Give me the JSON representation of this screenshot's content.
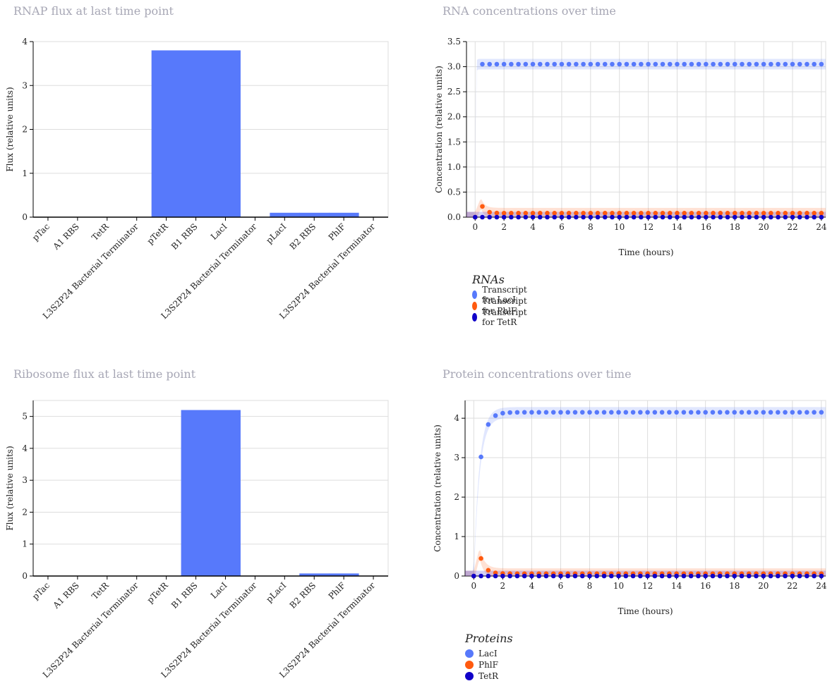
{
  "colors": {
    "lacI": "#5779fb",
    "phlF": "#ff5a0f",
    "tetR": "#1000c8",
    "grid": "#dddddd",
    "axis": "#000000",
    "title": "#a7a7b5"
  },
  "chart_data": [
    {
      "id": "rnap",
      "type": "bar",
      "title": "RNAP flux at last time point",
      "xlabel": "",
      "ylabel": "Flux (relative units)",
      "categories": [
        "pTac",
        "A1 RBS",
        "TetR",
        "L3S2P24 Bacterial Terminator",
        "pTetR",
        "B1 RBS",
        "LacI",
        "L3S2P24 Bacterial Terminator",
        "pLacI",
        "B2 RBS",
        "PhlF",
        "L3S2P24 Bacterial Terminator"
      ],
      "values": [
        0,
        0,
        0,
        0,
        3.8,
        3.8,
        3.8,
        0,
        0.1,
        0.1,
        0.1,
        0
      ],
      "ylim": [
        0,
        4
      ],
      "yticks": [
        0,
        1,
        2,
        3,
        4
      ],
      "grid": true
    },
    {
      "id": "rna",
      "type": "scatter",
      "title": "RNA concentrations over time",
      "xlabel": "Time (hours)",
      "ylabel": "Concentration (relative units)",
      "xlim": [
        -0.6,
        24.3
      ],
      "ylim": [
        0,
        3.5
      ],
      "xticks": [
        0,
        2,
        4,
        6,
        8,
        10,
        12,
        14,
        16,
        18,
        20,
        22,
        24
      ],
      "yticks": [
        "0.0",
        "0.5",
        "1.0",
        "1.5",
        "2.0",
        "2.5",
        "3.0",
        "3.5"
      ],
      "grid": true,
      "legend_title": "RNAs",
      "series": [
        {
          "name": "Transcript for LacI",
          "color": "#5779fb",
          "start": 0,
          "steady": 3.05,
          "rate": 40
        },
        {
          "name": "Transcript for PhlF",
          "color": "#ff5a0f",
          "start": 0,
          "peak": 0.28,
          "steady": 0.08,
          "decay": 4
        },
        {
          "name": "Transcript for TetR",
          "color": "#1000c8",
          "start": 0,
          "steady": 0.0
        }
      ]
    },
    {
      "id": "ribo",
      "type": "bar",
      "title": "Ribosome flux at last time point",
      "xlabel": "",
      "ylabel": "Flux (relative units)",
      "categories": [
        "pTac",
        "A1 RBS",
        "TetR",
        "L3S2P24 Bacterial Terminator",
        "pTetR",
        "B1 RBS",
        "LacI",
        "L3S2P24 Bacterial Terminator",
        "pLacI",
        "B2 RBS",
        "PhlF",
        "L3S2P24 Bacterial Terminator"
      ],
      "values": [
        0,
        0,
        0,
        0,
        0,
        5.2,
        5.2,
        0,
        0,
        0.08,
        0.08,
        0
      ],
      "ylim": [
        0,
        5.5
      ],
      "yticks": [
        0,
        1,
        2,
        3,
        4,
        5
      ],
      "grid": true
    },
    {
      "id": "protein",
      "type": "scatter",
      "title": "Protein concentrations over time",
      "xlabel": "Time (hours)",
      "ylabel": "Concentration (relative units)",
      "xlim": [
        -0.6,
        24.3
      ],
      "ylim": [
        0,
        4.45
      ],
      "xticks": [
        0,
        2,
        4,
        6,
        8,
        10,
        12,
        14,
        16,
        18,
        20,
        22,
        24
      ],
      "yticks": [
        "0",
        "1",
        "2",
        "3",
        "4"
      ],
      "grid": true,
      "legend_title": "Proteins",
      "series": [
        {
          "name": "LacI",
          "color": "#5779fb",
          "start": 0,
          "steady": 4.15,
          "rate": 2.6
        },
        {
          "name": "PhlF",
          "color": "#ff5a0f",
          "start": 0,
          "peak": 0.58,
          "steady": 0.06,
          "decay": 3
        },
        {
          "name": "TetR",
          "color": "#1000c8",
          "start": 0,
          "steady": 0.0
        }
      ]
    }
  ]
}
